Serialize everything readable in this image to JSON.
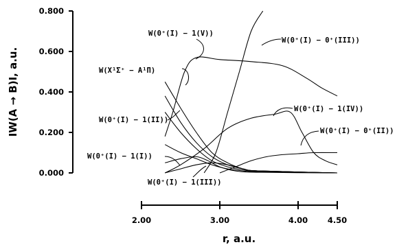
{
  "chart_data": {
    "type": "line",
    "title": "",
    "xlabel": "r, a.u.",
    "ylabel": "IW(A → B)I, a.u.",
    "xlim": [
      2.0,
      4.5
    ],
    "ylim": [
      0.0,
      0.8
    ],
    "x_ticks": [
      "2.00",
      "3.00",
      "4.00",
      "4.50"
    ],
    "y_ticks": [
      "0.000",
      "0.200",
      "0.400",
      "0.600",
      "0.800"
    ],
    "grid": false,
    "series": [
      {
        "name": "W(0⁺(I) − 1(V))",
        "x": [
          2.3,
          2.4,
          2.55,
          2.7,
          3.0,
          3.4,
          3.8,
          4.1,
          4.3,
          4.5
        ],
        "y": [
          0.18,
          0.3,
          0.5,
          0.57,
          0.56,
          0.55,
          0.53,
          0.47,
          0.42,
          0.38
        ]
      },
      {
        "name": "W(0⁺(I) − 0⁺(III))",
        "x": [
          2.8,
          2.95,
          3.1,
          3.25,
          3.4,
          3.55
        ],
        "y": [
          0.0,
          0.1,
          0.3,
          0.5,
          0.7,
          0.8
        ]
      },
      {
        "name": "W(X¹Σ⁺ − A¹Π)",
        "x": [
          2.3,
          2.5,
          2.7,
          2.9,
          3.1,
          3.3,
          3.5,
          4.5
        ],
        "y": [
          0.45,
          0.32,
          0.2,
          0.1,
          0.05,
          0.02,
          0.01,
          0.0
        ]
      },
      {
        "name": "W(0⁺(I) − 1(IV))",
        "x": [
          2.3,
          2.5,
          2.8,
          3.1,
          3.4,
          3.7,
          3.9,
          4.05,
          4.2,
          4.35,
          4.5
        ],
        "y": [
          0.0,
          0.04,
          0.12,
          0.22,
          0.27,
          0.29,
          0.3,
          0.2,
          0.1,
          0.06,
          0.04
        ]
      },
      {
        "name": "W(0⁺(I) − 1(II))",
        "x": [
          2.3,
          2.5,
          2.7,
          2.9,
          3.1,
          3.3,
          3.5,
          4.5
        ],
        "y": [
          0.38,
          0.25,
          0.15,
          0.08,
          0.04,
          0.02,
          0.01,
          0.0
        ]
      },
      {
        "name": "W(0⁺(I) − 0⁺(II))",
        "x": [
          3.0,
          3.2,
          3.4,
          3.6,
          3.8,
          4.0,
          4.2,
          4.5
        ],
        "y": [
          0.0,
          0.03,
          0.06,
          0.08,
          0.09,
          0.095,
          0.1,
          0.1
        ]
      },
      {
        "name": "W(0⁺(I) − 1(I))",
        "x": [
          2.3,
          2.5,
          2.7,
          2.9,
          3.1,
          3.3,
          3.5,
          4.5
        ],
        "y": [
          0.14,
          0.1,
          0.07,
          0.04,
          0.02,
          0.01,
          0.005,
          0.0
        ]
      },
      {
        "name": "W(0⁺(I) − 1(III))",
        "x": [
          2.3,
          2.5,
          2.7,
          2.85,
          3.0,
          3.2,
          3.5,
          4.5
        ],
        "y": [
          0.05,
          0.07,
          0.08,
          0.06,
          0.03,
          0.01,
          0.003,
          0.0
        ]
      },
      {
        "name": "",
        "x": [
          2.3,
          2.5,
          2.7,
          2.9,
          3.1,
          3.3,
          3.5,
          4.5
        ],
        "y": [
          0.3,
          0.2,
          0.12,
          0.06,
          0.03,
          0.015,
          0.008,
          0.0
        ]
      },
      {
        "name": "",
        "x": [
          2.3,
          2.5,
          2.7,
          2.9,
          3.1,
          3.3,
          3.5,
          4.5
        ],
        "y": [
          0.0,
          0.02,
          0.04,
          0.05,
          0.04,
          0.02,
          0.01,
          0.0
        ]
      }
    ]
  }
}
